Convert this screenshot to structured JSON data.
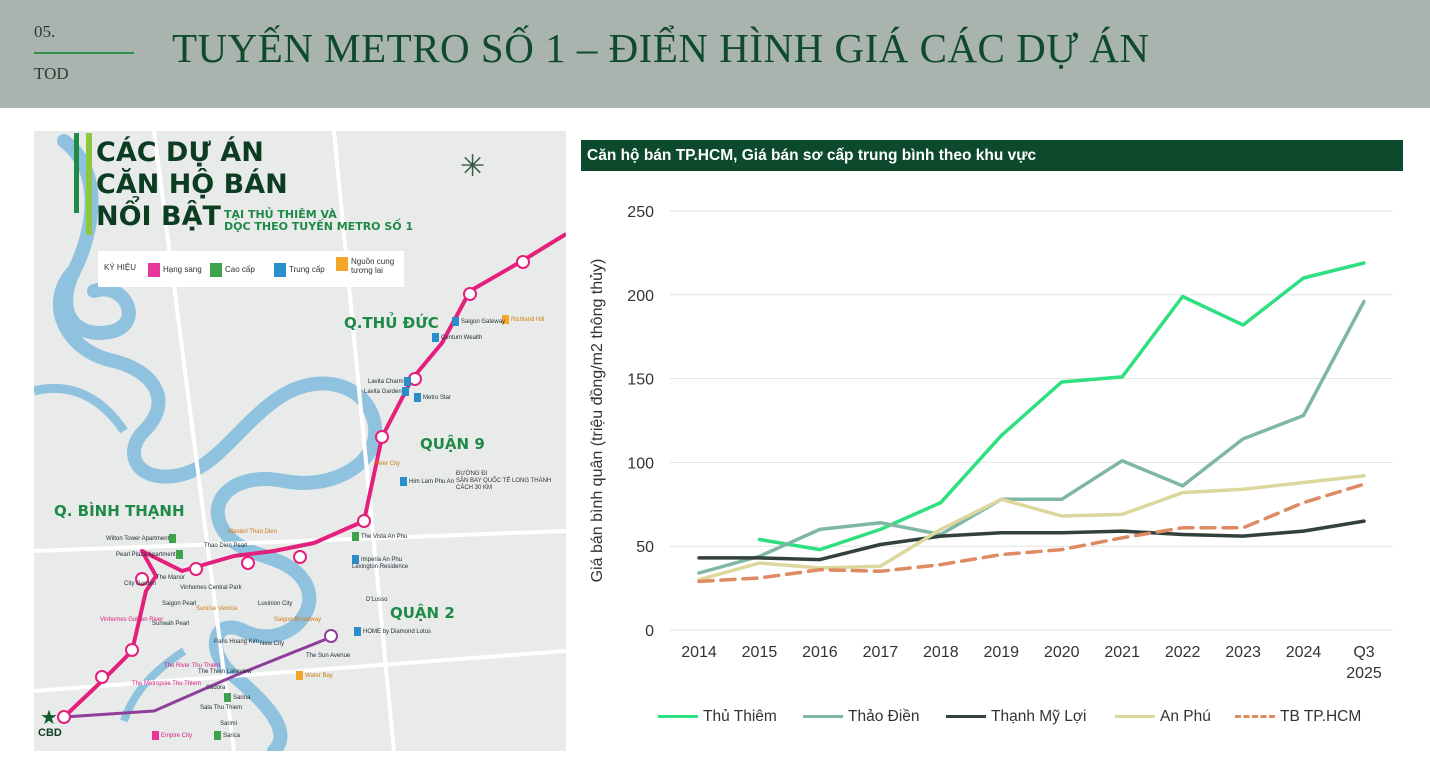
{
  "header": {
    "number": "05.",
    "section": "TOD",
    "title": "TUYẾN METRO SỐ 1 – ĐIỂN HÌNH GIÁ CÁC DỰ ÁN"
  },
  "map": {
    "title_lines": [
      "CÁC DỰ ÁN",
      "CĂN HỘ BÁN",
      "NỔI BẬT"
    ],
    "subtitle_lines": [
      "TẠI THỦ THIÊM VÀ",
      "DỌC THEO TUYẾN METRO SỐ 1"
    ],
    "legend": {
      "label": "KÝ HIỆU",
      "items": [
        "Hạng sang",
        "Cao cấp",
        "Trung cấp",
        "Nguồn cung tương lai"
      ]
    },
    "areas": [
      "Q.THỦ ĐỨC",
      "QUẬN 9",
      "Q. BÌNH THẠNH",
      "QUẬN 2"
    ],
    "route_note": [
      "ĐƯỜNG ĐI",
      "SÂN BAY QUỐC TẾ LONG THÀNH",
      "CÁCH 30 KM"
    ],
    "cbd": "CBD",
    "projects": {
      "richland": "Richland Hill",
      "saigon_gateway": "Saigon Gateway",
      "centum": "Centum Wealth",
      "lavita_charm": "Lavita Charm",
      "lavita_garden": "Lavita Garden",
      "metro_star": "Metro Star",
      "river_city": "River City",
      "him_lam": "Him Lam Phu An",
      "wilton": "Wilton Tower Apartment",
      "pearl_plaza": "Pearl Plaza Apartment",
      "masteri_thao_dien": "Masteri Thao Dien",
      "thao_dien_pearl": "Thao Dien Pearl",
      "the_vista": "The Vista An Phu",
      "imperia": "Imperia An Phu",
      "lexington": "Lexington Residence",
      "the_manor": "The Manor",
      "vinhomes_cp": "Vinhomes Central Park",
      "city_garden": "City Garden",
      "saigon_pearl": "Saigon Pearl",
      "sunrise_venicia": "Sunrise Venicia",
      "luxinion": "Luxinion City",
      "vinhomes_golden": "Vinhomes Golden River",
      "sunwah": "Sunwah Pearl",
      "saigon_broadway": "Saigon Broadway",
      "d_lusso": "D'Lusso",
      "home_diamond": "HOME by Diamond Lotus",
      "paris_hoang_kim": "Paris Hoang Kim",
      "new_city": "New City",
      "the_sun_avenue": "The Sun Avenue",
      "water_bay": "Water Bay",
      "the_river": "The River Thu Thiem",
      "metropole": "The Metropole Thu Thiem",
      "lakeview": "The Thien Lakeview",
      "sadora": "Sadora",
      "sarina": "Sarina",
      "sala": "Sala Thu Thiem",
      "sarimi": "Sarimi",
      "sarica": "Sarica",
      "empire": "Empire City"
    }
  },
  "chart_title": "Căn hộ bán TP.HCM, Giá bán sơ cấp trung bình theo khu vực",
  "chart_data": {
    "type": "line",
    "title": "Căn hộ bán TP.HCM, Giá bán sơ cấp trung bình theo khu vực",
    "xlabel": "",
    "ylabel": "Giá bán bình quân (triệu đồng/m2 thông thủy)",
    "ylim": [
      0,
      250
    ],
    "yticks": [
      0,
      50,
      100,
      150,
      200,
      250
    ],
    "grid": true,
    "legend_position": "bottom",
    "categories": [
      "2014",
      "2015",
      "2016",
      "2017",
      "2018",
      "2019",
      "2020",
      "2021",
      "2022",
      "2023",
      "2024",
      "Q3 2025"
    ],
    "series": [
      {
        "name": "Thủ Thiêm",
        "color": "#2ee07f",
        "dash": false,
        "values": [
          null,
          54,
          48,
          60,
          76,
          116,
          148,
          151,
          199,
          182,
          210,
          219
        ]
      },
      {
        "name": "Thảo Điền",
        "color": "#7fb7a4",
        "dash": false,
        "values": [
          34,
          44,
          60,
          64,
          57,
          78,
          78,
          101,
          86,
          114,
          128,
          196
        ]
      },
      {
        "name": "Thạnh Mỹ Lợi",
        "color": "#33413c",
        "dash": false,
        "values": [
          43,
          43,
          42,
          51,
          56,
          58,
          58,
          59,
          57,
          56,
          59,
          65
        ]
      },
      {
        "name": "An Phú",
        "color": "#dcd79c",
        "dash": false,
        "values": [
          30,
          40,
          37,
          38,
          60,
          78,
          68,
          69,
          82,
          84,
          88,
          92
        ]
      },
      {
        "name": "TB TP.HCM",
        "color": "#de8a63",
        "dash": true,
        "values": [
          29,
          31,
          36,
          35,
          39,
          45,
          48,
          55,
          61,
          61,
          76,
          87
        ]
      }
    ]
  }
}
